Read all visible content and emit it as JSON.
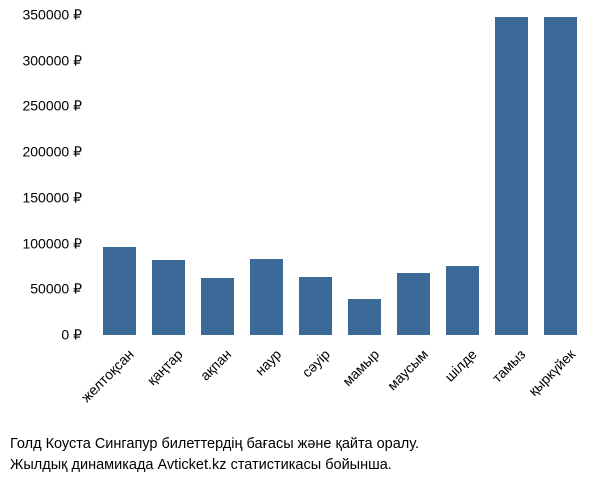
{
  "chart": {
    "type": "bar",
    "bar_color": "#3b6998",
    "background_color": "#ffffff",
    "ylim": [
      0,
      350000
    ],
    "ytick_step": 50000,
    "currency_symbol": "₽",
    "y_ticks": [
      {
        "value": 0,
        "label": "0 ₽"
      },
      {
        "value": 50000,
        "label": "50000 ₽"
      },
      {
        "value": 100000,
        "label": "100000 ₽"
      },
      {
        "value": 150000,
        "label": "150000 ₽"
      },
      {
        "value": 200000,
        "label": "200000 ₽"
      },
      {
        "value": 250000,
        "label": "250000 ₽"
      },
      {
        "value": 300000,
        "label": "300000 ₽"
      },
      {
        "value": 350000,
        "label": "350000 ₽"
      }
    ],
    "categories": [
      "желтоқсан",
      "қаңтар",
      "ақпан",
      "наур",
      "сәуір",
      "мамыр",
      "маусым",
      "шілде",
      "тамыз",
      "қыркүйек"
    ],
    "values": [
      96000,
      82000,
      62000,
      83000,
      63000,
      39000,
      68000,
      75000,
      348000,
      348000
    ],
    "bar_width_ratio": 0.68,
    "x_label_fontsize": 14,
    "y_label_fontsize": 14,
    "x_label_rotation": -45
  },
  "caption": {
    "line1": "Голд Коуста Сингапур билеттердің бағасы және қайта оралу.",
    "line2": "Жылдық динамикада Avticket.kz статистикасы бойынша."
  }
}
